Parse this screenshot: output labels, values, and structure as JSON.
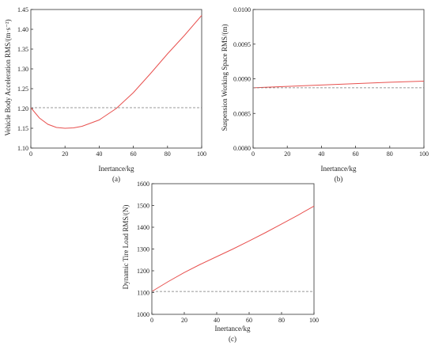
{
  "chart_data": [
    {
      "type": "line",
      "panel_label": "(a)",
      "xlabel": "Inertance/kg",
      "ylabel": "Vehicle Body Acceleration RMS/(m·s⁻²)",
      "xlim": [
        0,
        100
      ],
      "ylim": [
        1.1,
        1.45
      ],
      "xticks": [
        "0",
        "20",
        "40",
        "60",
        "80",
        "100"
      ],
      "yticks": [
        "1.10",
        "1.15",
        "1.20",
        "1.25",
        "1.30",
        "1.35",
        "1.40",
        "1.45"
      ],
      "grid": false,
      "series": [
        {
          "style": "solid",
          "color": "#e8514f",
          "x": [
            0,
            5,
            10,
            15,
            20,
            25,
            30,
            40,
            50,
            60,
            70,
            80,
            90,
            100
          ],
          "y": [
            1.202,
            1.176,
            1.16,
            1.152,
            1.15,
            1.151,
            1.155,
            1.171,
            1.2,
            1.24,
            1.288,
            1.338,
            1.385,
            1.435
          ]
        },
        {
          "style": "dashed",
          "color": "#777777",
          "x": [
            0,
            100
          ],
          "y": [
            1.202,
            1.202
          ]
        }
      ]
    },
    {
      "type": "line",
      "panel_label": "(b)",
      "xlabel": "Inertance/kg",
      "ylabel": "Suspension Working Space RMS/(m)",
      "xlim": [
        0,
        100
      ],
      "ylim": [
        0.008,
        0.01
      ],
      "xticks": [
        "0",
        "20",
        "40",
        "60",
        "80",
        "100"
      ],
      "yticks": [
        "0.0080",
        "0.0085",
        "0.0090",
        "0.0095",
        "0.0100"
      ],
      "grid": false,
      "series": [
        {
          "style": "solid",
          "color": "#e8514f",
          "x": [
            0,
            20,
            40,
            60,
            80,
            100
          ],
          "y": [
            0.00887,
            0.00889,
            0.00891,
            0.00893,
            0.00895,
            0.008965
          ]
        },
        {
          "style": "dashed",
          "color": "#777777",
          "x": [
            0,
            100
          ],
          "y": [
            0.00887,
            0.00887
          ]
        }
      ]
    },
    {
      "type": "line",
      "panel_label": "(c)",
      "xlabel": "Inertance/kg",
      "ylabel": "Dynamic Tire Load RMS/(N)",
      "xlim": [
        0,
        100
      ],
      "ylim": [
        1000,
        1600
      ],
      "xticks": [
        "0",
        "20",
        "40",
        "60",
        "80",
        "100"
      ],
      "yticks": [
        "1000",
        "1100",
        "1200",
        "1300",
        "1400",
        "1500",
        "1600"
      ],
      "grid": false,
      "series": [
        {
          "style": "solid",
          "color": "#e8514f",
          "x": [
            0,
            10,
            20,
            30,
            40,
            50,
            60,
            70,
            80,
            90,
            100
          ],
          "y": [
            1105,
            1150,
            1192,
            1230,
            1265,
            1300,
            1337,
            1375,
            1415,
            1455,
            1497
          ]
        },
        {
          "style": "dashed",
          "color": "#777777",
          "x": [
            0,
            100
          ],
          "y": [
            1105,
            1105
          ]
        }
      ]
    }
  ]
}
